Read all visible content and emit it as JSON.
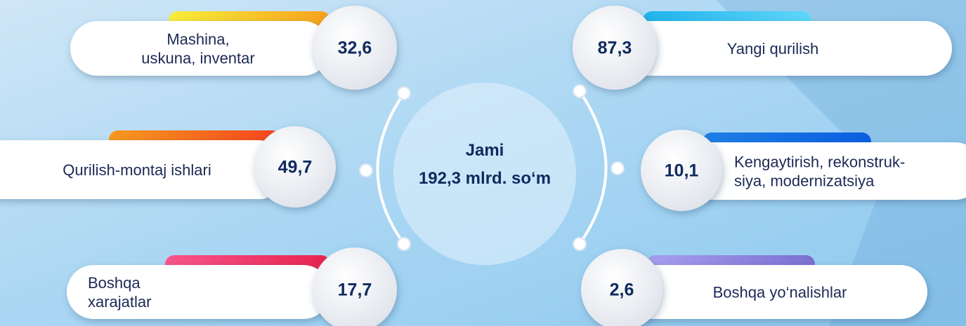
{
  "center": {
    "title": "Jami",
    "total": "192,3 mlrd. so‘m"
  },
  "items": [
    {
      "lines": [
        "Mashina,",
        "uskuna, inventar"
      ],
      "value": "32,6"
    },
    {
      "lines": [
        "Qurilish-montaj ishlari"
      ],
      "value": "49,7"
    },
    {
      "lines": [
        "Boshqa",
        "xarajatlar"
      ],
      "value": "17,7"
    },
    {
      "lines": [
        "Yangi qurilish"
      ],
      "value": "87,3"
    },
    {
      "lines": [
        "Kengaytirish, rekonstruk-",
        "siya, modernizatsiya"
      ],
      "value": "10,1"
    },
    {
      "lines": [
        "Boshqa yo‘nalishlar"
      ],
      "value": "2,6"
    }
  ]
}
